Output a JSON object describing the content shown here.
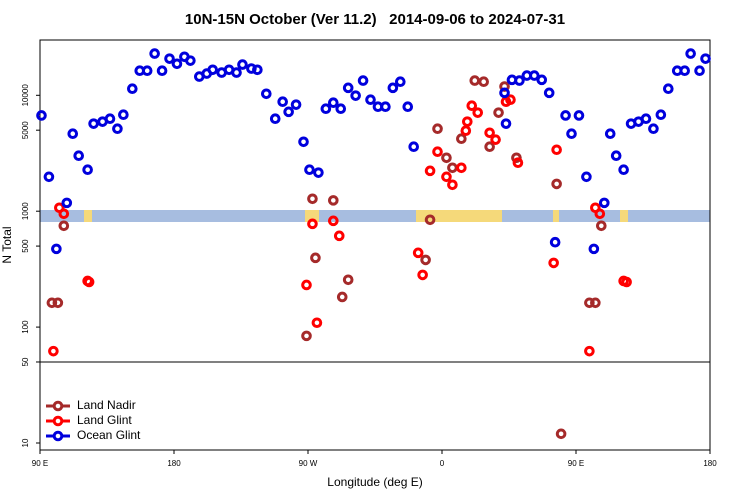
{
  "chart_data": {
    "type": "scatter",
    "title": "10N-15N October (Ver 11.2)   2014-09-06 to 2024-07-31",
    "x_label": "Longitude (deg E)",
    "y_label": "N Total",
    "xlim": [
      90,
      540
    ],
    "xticks": [
      {
        "value": 90,
        "label": "90 E"
      },
      180,
      {
        "value": 270,
        "label": "90 W"
      },
      {
        "value": 360,
        "label": "0"
      },
      {
        "value": 450,
        "label": "90 E"
      },
      {
        "value": 540,
        "label": "180"
      }
    ],
    "ylim": [
      8.7,
      30000
    ],
    "log_y": true,
    "yticks": [
      10,
      50,
      100,
      500,
      1000,
      5000,
      10000
    ],
    "hline": 50,
    "legend": "bottom-left",
    "series": [
      {
        "name": "Land Nadir",
        "color": "#a52a2a",
        "x": [
          98,
          102,
          106,
          269,
          273,
          275,
          287,
          293,
          297,
          349,
          352,
          357,
          363,
          367,
          373,
          382,
          388,
          392,
          398,
          402,
          410,
          437,
          440,
          459,
          463,
          467
        ],
        "values": [
          162,
          162,
          748,
          84,
          1280,
          396,
          1240,
          182,
          256,
          380,
          843,
          5150,
          2890,
          2370,
          4220,
          13400,
          13100,
          3600,
          7080,
          11900,
          2890,
          1720,
          12,
          162,
          162,
          748
        ]
      },
      {
        "name": "Land Glint",
        "color": "#ff0000",
        "x": [
          99,
          103,
          106,
          122,
          123,
          269,
          273,
          276,
          287,
          291,
          344,
          347,
          352,
          357,
          363,
          367,
          373,
          376,
          377,
          380,
          384,
          392,
          396,
          403,
          406,
          411,
          435,
          437,
          459,
          463,
          466,
          482,
          484
        ],
        "values": [
          62,
          1070,
          950,
          250,
          245,
          231,
          778,
          109,
          826,
          613,
          437,
          282,
          2230,
          3260,
          1980,
          1690,
          2370,
          4950,
          5920,
          8130,
          7080,
          4750,
          4140,
          8800,
          9160,
          2620,
          358,
          3390,
          62,
          1070,
          950,
          250,
          245
        ]
      },
      {
        "name": "Ocean Glint",
        "color": "#0000dd",
        "x": [
          91,
          96,
          101,
          108,
          112,
          116,
          122,
          126,
          132,
          137,
          142,
          146,
          152,
          157,
          162,
          167,
          172,
          177,
          182,
          187,
          191,
          197,
          202,
          206,
          212,
          217,
          222,
          226,
          232,
          236,
          242,
          248,
          253,
          257,
          262,
          267,
          271,
          277,
          282,
          287,
          292,
          297,
          302,
          307,
          312,
          317,
          322,
          327,
          332,
          337,
          341,
          402,
          403,
          407,
          412,
          417,
          422,
          427,
          432,
          436,
          443,
          447,
          452,
          457,
          462,
          469,
          473,
          477,
          482,
          487,
          492,
          497,
          502,
          507,
          512,
          518,
          523,
          527,
          533,
          537
        ],
        "values": [
          6700,
          1980,
          473,
          1180,
          4660,
          3010,
          2280,
          5690,
          5920,
          6280,
          5150,
          6800,
          11400,
          16300,
          16300,
          22900,
          16300,
          20700,
          18700,
          21500,
          19900,
          14500,
          15400,
          16600,
          15700,
          16600,
          15700,
          18400,
          17000,
          16600,
          10300,
          6280,
          8800,
          7200,
          8300,
          3970,
          2280,
          2150,
          7660,
          8630,
          7660,
          11600,
          9930,
          13400,
          9160,
          7970,
          7970,
          11600,
          13100,
          7970,
          3600,
          10500,
          5690,
          13600,
          13400,
          14800,
          14800,
          13600,
          10500,
          540,
          6700,
          4660,
          6700,
          1980,
          473,
          1180,
          4660,
          3010,
          2280,
          5690,
          5920,
          6280,
          5150,
          6800,
          11400,
          16300,
          16300,
          22900,
          16300,
          20700
        ]
      }
    ]
  }
}
